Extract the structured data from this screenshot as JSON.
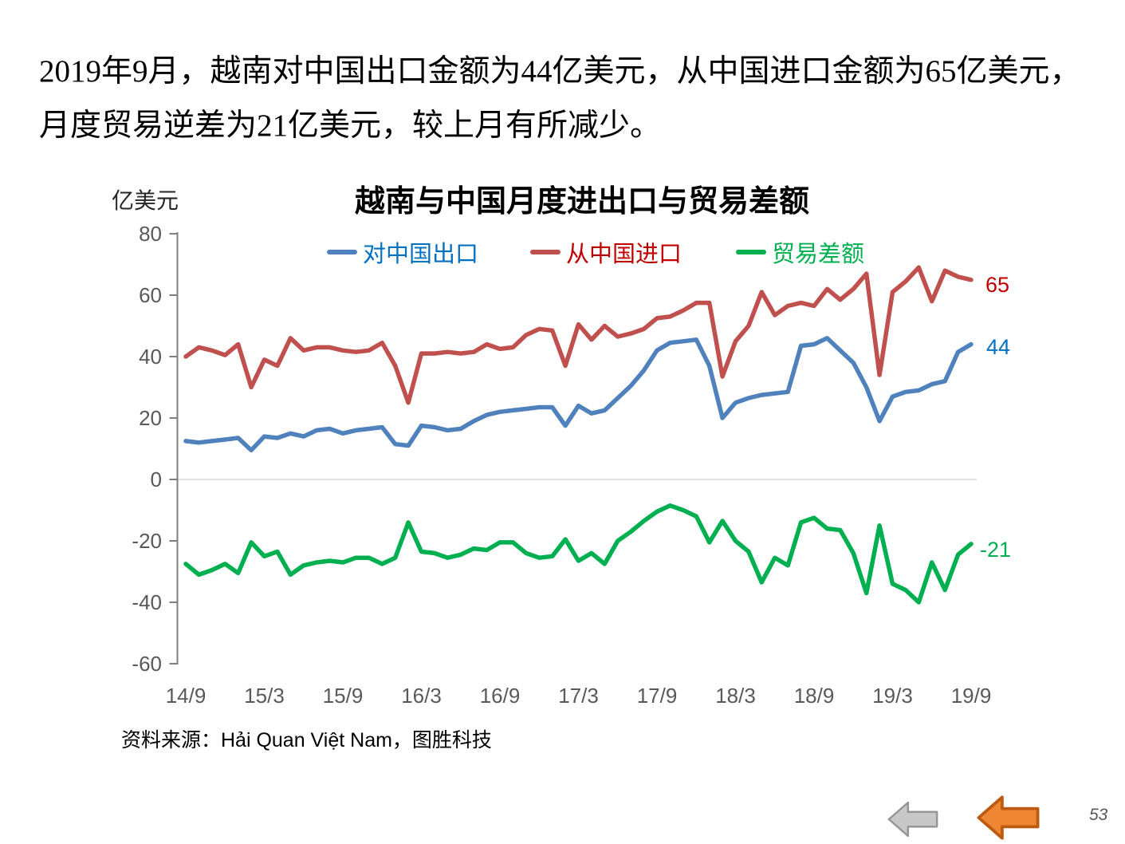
{
  "page": {
    "intro_line1": "2019年9月，越南对中国出口金额为44亿美元，从中国进口金额为65亿美元，",
    "intro_line2": "月度贸易逆差为21亿美元，较上月有所减少。",
    "source": "资料来源：Hải Quan Việt Nam，图胜科技",
    "page_number": "53"
  },
  "nav": {
    "gray_arrow_fill": "#C8C8C8",
    "gray_arrow_border": "#969696",
    "orange_arrow_fill": "#EE8633",
    "orange_arrow_border": "#BC5B10"
  },
  "chart_data": {
    "type": "line",
    "title": "越南与中国月度进出口与贸易差额",
    "y_unit": "亿美元",
    "ylabel": "亿美元",
    "xlabel": "",
    "ylim": [
      -60,
      80
    ],
    "y_ticks": [
      80,
      60,
      40,
      20,
      0,
      -20,
      -40,
      -60
    ],
    "x_tick_labels": [
      "14/9",
      "15/3",
      "15/9",
      "16/3",
      "16/9",
      "17/3",
      "17/9",
      "18/3",
      "18/9",
      "19/3",
      "19/9"
    ],
    "x_tick_every": 6,
    "grid": "zero-line-only",
    "legend_position": "top",
    "colors": {
      "axis": "#7F7F7F",
      "gridline": "#D9D9D9",
      "tick_label": "#595959"
    },
    "categories": [
      "14/9",
      "14/10",
      "14/11",
      "14/12",
      "15/1",
      "15/2",
      "15/3",
      "15/4",
      "15/5",
      "15/6",
      "15/7",
      "15/8",
      "15/9",
      "15/10",
      "15/11",
      "15/12",
      "16/1",
      "16/2",
      "16/3",
      "16/4",
      "16/5",
      "16/6",
      "16/7",
      "16/8",
      "16/9",
      "16/10",
      "16/11",
      "16/12",
      "17/1",
      "17/2",
      "17/3",
      "17/4",
      "17/5",
      "17/6",
      "17/7",
      "17/8",
      "17/9",
      "17/10",
      "17/11",
      "17/12",
      "18/1",
      "18/2",
      "18/3",
      "18/4",
      "18/5",
      "18/6",
      "18/7",
      "18/8",
      "18/9",
      "18/10",
      "18/11",
      "18/12",
      "19/1",
      "19/2",
      "19/3",
      "19/4",
      "19/5",
      "19/6",
      "19/7",
      "19/8",
      "19/9"
    ],
    "series": [
      {
        "key": "exports",
        "name": "对中国出口",
        "color": "#4F81BD",
        "label_color": "#0070C0",
        "end_label": "44",
        "values": [
          12.5,
          12,
          12.5,
          13,
          13.5,
          9.5,
          14,
          13.5,
          15,
          14,
          16,
          16.5,
          15,
          16,
          16.5,
          17,
          11.5,
          11,
          17.5,
          17,
          16,
          16.5,
          19,
          21,
          22,
          22.5,
          23,
          23.5,
          23.5,
          17.5,
          24,
          21.5,
          22.5,
          26.5,
          30.5,
          35.5,
          42,
          44.5,
          45,
          45.5,
          37,
          20,
          25,
          26.5,
          27.5,
          28,
          28.5,
          43.5,
          44,
          46,
          42,
          38,
          30,
          19,
          27,
          28.5,
          29,
          31,
          32,
          41.5,
          44
        ]
      },
      {
        "key": "imports",
        "name": "从中国进口",
        "color": "#C0504D",
        "label_color": "#C00000",
        "end_label": "65",
        "values": [
          40,
          43,
          42,
          40.5,
          44,
          30,
          39,
          37,
          46,
          42,
          43,
          43,
          42,
          41.5,
          42,
          44.5,
          37,
          25,
          41,
          41,
          41.5,
          41,
          41.5,
          44,
          42.5,
          43,
          47,
          49,
          48.5,
          37,
          50.5,
          45.5,
          50,
          46.5,
          47.5,
          49,
          52.5,
          53,
          55,
          57.5,
          57.5,
          33.5,
          45,
          50,
          61,
          53.5,
          56.5,
          57.5,
          56.5,
          62,
          58.5,
          62,
          67,
          34,
          61,
          64.5,
          69,
          58,
          68,
          66,
          65
        ]
      },
      {
        "key": "balance",
        "name": "贸易差额",
        "color": "#00B050",
        "label_color": "#00B050",
        "end_label": "-21",
        "values": [
          -27.5,
          -31,
          -29.5,
          -27.5,
          -30.5,
          -20.5,
          -25,
          -23.5,
          -31,
          -28,
          -27,
          -26.5,
          -27,
          -25.5,
          -25.5,
          -27.5,
          -25.5,
          -14,
          -23.5,
          -24,
          -25.5,
          -24.5,
          -22.5,
          -23,
          -20.5,
          -20.5,
          -24,
          -25.5,
          -25,
          -19.5,
          -26.5,
          -24,
          -27.5,
          -20,
          -17,
          -13.5,
          -10.5,
          -8.5,
          -10,
          -12,
          -20.5,
          -13.5,
          -20,
          -23.5,
          -33.5,
          -25.5,
          -28,
          -14,
          -12.5,
          -16,
          -16.5,
          -24,
          -37,
          -15,
          -34,
          -36,
          -40,
          -27,
          -36,
          -24.5,
          -21
        ]
      }
    ]
  }
}
